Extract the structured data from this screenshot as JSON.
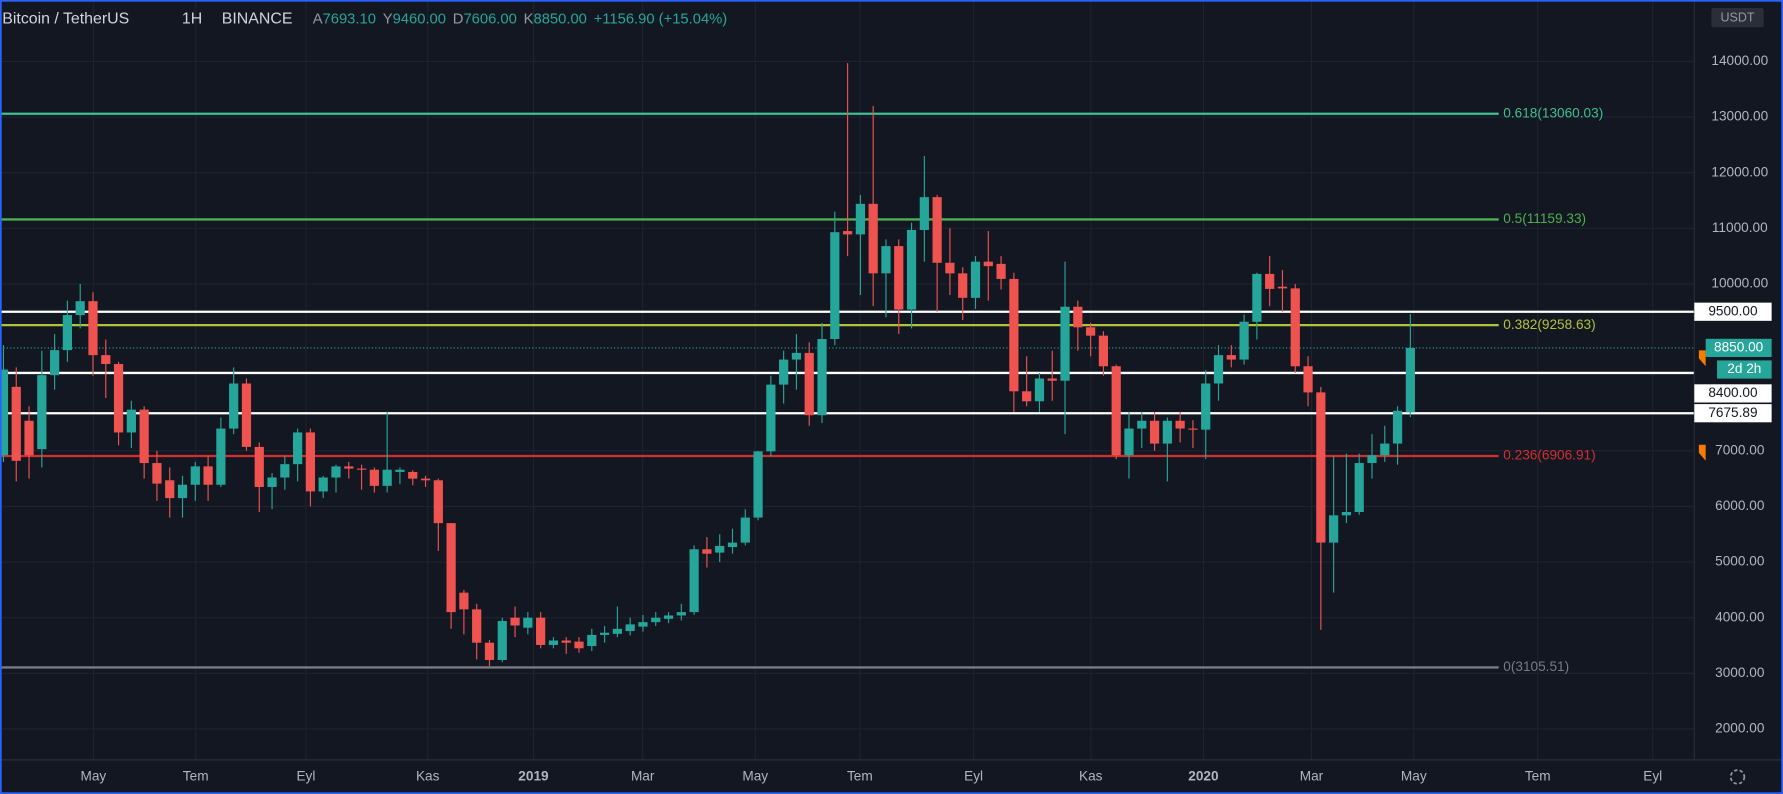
{
  "header": {
    "symbol": "Bitcoin / TetherUS",
    "interval": "1H",
    "exchange": "BINANCE",
    "open_key": "A",
    "open": "7693.10",
    "high_key": "Y",
    "high": "9460.00",
    "low_key": "D",
    "low": "7606.00",
    "close_key": "K",
    "close": "8850.00",
    "change": "+1156.90 (+15.04%)",
    "currency": "USDT"
  },
  "chart_data": {
    "type": "candlestick",
    "categories": [
      null,
      null,
      null,
      null,
      null,
      null,
      null,
      null,
      null,
      null,
      null,
      null,
      null,
      null,
      null,
      null,
      null,
      null,
      null,
      null,
      null,
      null,
      null,
      null,
      null,
      null,
      null,
      null,
      null,
      null,
      null,
      null,
      null,
      null,
      null,
      null,
      null,
      null,
      null,
      null,
      null,
      null,
      null,
      null,
      null,
      null,
      null,
      null,
      null,
      null,
      null,
      null,
      null,
      null,
      null,
      null,
      null,
      null,
      null,
      null,
      null,
      null,
      null,
      null,
      null,
      null,
      null,
      null,
      null,
      null,
      null,
      null,
      null,
      null,
      null,
      null,
      null,
      null,
      null,
      null,
      null,
      null,
      null,
      null,
      null,
      null,
      null,
      null,
      null,
      null,
      null,
      null,
      null,
      null,
      null,
      null,
      null,
      null,
      null,
      null,
      null,
      null,
      null,
      null,
      null,
      null,
      null,
      null,
      null,
      null,
      null
    ],
    "open": [
      6920,
      8150,
      7540,
      7030,
      8360,
      8810,
      9440,
      9690,
      8720,
      8560,
      7330,
      7740,
      6780,
      6470,
      6150,
      6390,
      6720,
      6390,
      7400,
      8210,
      7070,
      6350,
      6520,
      6760,
      7330,
      6270,
      6520,
      6720,
      6680,
      6660,
      6370,
      6620,
      6620,
      6500,
      6470,
      5700,
      4450,
      4150,
      3550,
      3240,
      4000,
      3820,
      4000,
      3510,
      3590,
      3570,
      3490,
      3690,
      3710,
      3760,
      3840,
      3920,
      3980,
      4040,
      4100,
      5230,
      5170,
      5270,
      5350,
      5800,
      6990,
      8190,
      8640,
      8760,
      7640,
      9010,
      10950,
      10890,
      11440,
      10190,
      10680,
      9540,
      10970,
      11560,
      10380,
      10190,
      9750,
      10400,
      10360,
      10090,
      8070,
      7890,
      8300,
      8260,
      9590,
      9220,
      9070,
      8520,
      6920,
      7400,
      7540,
      7130,
      7540,
      7400,
      7380,
      8210,
      8720,
      8640,
      9320,
      10180,
      9950,
      9920,
      8520,
      8050,
      5350,
      5840,
      5900,
      6780,
      6920,
      7130,
      7693.1
    ],
    "high": [
      8900,
      8500,
      7800,
      8800,
      9100,
      9700,
      10000,
      9850,
      9000,
      8600,
      7900,
      7800,
      7000,
      6700,
      6550,
      6800,
      6900,
      7600,
      8500,
      8300,
      7150,
      6600,
      6900,
      7400,
      7400,
      6550,
      6750,
      6800,
      6750,
      6700,
      7700,
      6700,
      6650,
      6550,
      6500,
      5700,
      4500,
      4250,
      3600,
      4000,
      4200,
      4100,
      4100,
      3650,
      3650,
      3650,
      3800,
      3850,
      4200,
      4000,
      4050,
      4100,
      4100,
      4250,
      5300,
      5450,
      5500,
      5600,
      5950,
      7000,
      8350,
      8800,
      9100,
      8950,
      9300,
      11300,
      13970,
      11600,
      13200,
      10800,
      10800,
      11100,
      12300,
      11600,
      11000,
      10300,
      10500,
      10950,
      10500,
      10200,
      8700,
      8400,
      8800,
      10400,
      9700,
      9300,
      9150,
      8550,
      7700,
      7700,
      7700,
      7600,
      7700,
      7550,
      8450,
      8900,
      8900,
      9450,
      10200,
      10500,
      10250,
      10000,
      8700,
      8150,
      6900,
      6950,
      6950,
      7300,
      7450,
      7800,
      9460
    ],
    "low": [
      6800,
      6450,
      6500,
      6700,
      8100,
      8600,
      9200,
      8350,
      7950,
      7100,
      7050,
      6500,
      6100,
      5800,
      5800,
      6100,
      6100,
      6350,
      7300,
      7000,
      5900,
      5950,
      6300,
      6450,
      6000,
      6150,
      6250,
      6500,
      6300,
      6250,
      6250,
      6400,
      6380,
      6350,
      5200,
      3800,
      3700,
      3250,
      3130,
      3200,
      3650,
      3700,
      3450,
      3450,
      3350,
      3370,
      3400,
      3550,
      3650,
      3680,
      3750,
      3850,
      3900,
      3950,
      4050,
      4900,
      5000,
      5150,
      5300,
      5750,
      6900,
      7850,
      8100,
      7450,
      7500,
      8900,
      10500,
      9800,
      9600,
      9400,
      9100,
      9200,
      10400,
      9500,
      9800,
      9350,
      9550,
      9700,
      9900,
      7700,
      7800,
      7700,
      7900,
      7300,
      8800,
      8700,
      8350,
      6850,
      6500,
      7050,
      7000,
      6450,
      7150,
      7050,
      6850,
      7900,
      8500,
      8550,
      9000,
      9600,
      9500,
      8400,
      7800,
      3780,
      4450,
      5700,
      5850,
      6500,
      6800,
      6750,
      7606
    ],
    "close": [
      8460,
      6820,
      6920,
      8360,
      8810,
      9440,
      9690,
      8720,
      8560,
      7330,
      7740,
      6780,
      6410,
      6150,
      6390,
      6720,
      6390,
      7400,
      8210,
      7070,
      6350,
      6520,
      6760,
      7330,
      6270,
      6520,
      6720,
      6680,
      6660,
      6370,
      6660,
      6660,
      6500,
      6470,
      5700,
      4100,
      4150,
      3550,
      3240,
      3940,
      3860,
      4000,
      3510,
      3590,
      3550,
      3450,
      3690,
      3730,
      3800,
      3880,
      3920,
      4000,
      4040,
      4100,
      5230,
      5150,
      5290,
      5350,
      5800,
      6990,
      8190,
      8640,
      8760,
      7640,
      9010,
      10930,
      10890,
      11440,
      10190,
      10680,
      9540,
      10970,
      11560,
      10380,
      10190,
      9750,
      10400,
      10320,
      10090,
      8070,
      7890,
      8300,
      8260,
      9590,
      9220,
      9070,
      8520,
      6920,
      7400,
      7540,
      7130,
      7540,
      7400,
      7380,
      8210,
      8720,
      8640,
      9320,
      10180,
      9910,
      9920,
      8520,
      8050,
      5350,
      5840,
      5900,
      6780,
      6920,
      7130,
      7720,
      8850
    ],
    "up_color": "#26a69a",
    "down_color": "#ef5350",
    "xlim": [
      -0.27,
      132.2
    ],
    "xticks": [
      {
        "value": 7.03,
        "label": "May"
      },
      {
        "value": 15.03,
        "label": "Tem"
      },
      {
        "value": 23.65,
        "label": "Eyl"
      },
      {
        "value": 33.17,
        "label": "Kas"
      },
      {
        "value": 41.44,
        "label": "2019"
      },
      {
        "value": 49.98,
        "label": "Mar"
      },
      {
        "value": 58.78,
        "label": "May"
      },
      {
        "value": 66.96,
        "label": "Tem"
      },
      {
        "value": 75.85,
        "label": "Eyl"
      },
      {
        "value": 85.01,
        "label": "Kas"
      },
      {
        "value": 93.82,
        "label": "2020"
      },
      {
        "value": 102.27,
        "label": "Mar"
      },
      {
        "value": 110.27,
        "label": "May"
      },
      {
        "value": 119.96,
        "label": "Tem"
      },
      {
        "value": 128.95,
        "label": "Eyl"
      }
    ],
    "ylim": [
      1444,
      15104
    ],
    "yticks": [
      {
        "value": 2000,
        "label": "2000.00"
      },
      {
        "value": 3000,
        "label": "3000.00"
      },
      {
        "value": 4000,
        "label": "4000.00"
      },
      {
        "value": 5000,
        "label": "5000.00"
      },
      {
        "value": 6000,
        "label": "6000.00"
      },
      {
        "value": 7000,
        "label": "7000.00"
      },
      {
        "value": 10000,
        "label": "10000.00"
      },
      {
        "value": 11000,
        "label": "11000.00"
      },
      {
        "value": 12000,
        "label": "12000.00"
      },
      {
        "value": 13000,
        "label": "13000.00"
      },
      {
        "value": 14000,
        "label": "14000.00"
      }
    ],
    "grid": true,
    "fib_levels": [
      {
        "name": "0.618(13060.03)",
        "value": 13060.03,
        "color": "#3fbf8f"
      },
      {
        "name": "0.5(11159.33)",
        "value": 11159.33,
        "color": "#4caf50"
      },
      {
        "name": "0.382(9258.63)",
        "value": 9258.63,
        "color": "#b2c23b"
      },
      {
        "name": "0.236(6906.91)",
        "value": 6906.91,
        "color": "#d32f2f"
      },
      {
        "name": "0(3105.51)",
        "value": 3105.51,
        "color": "#787b86"
      }
    ],
    "price_lines": [
      {
        "value": 9500,
        "label": "9500.00"
      },
      {
        "value": 8400,
        "label": "8400.00"
      },
      {
        "value": 7675.89,
        "label": "7675.89"
      }
    ],
    "last_price": {
      "value": 8850,
      "label": "8850.00",
      "countdown": "2d 2h"
    }
  }
}
